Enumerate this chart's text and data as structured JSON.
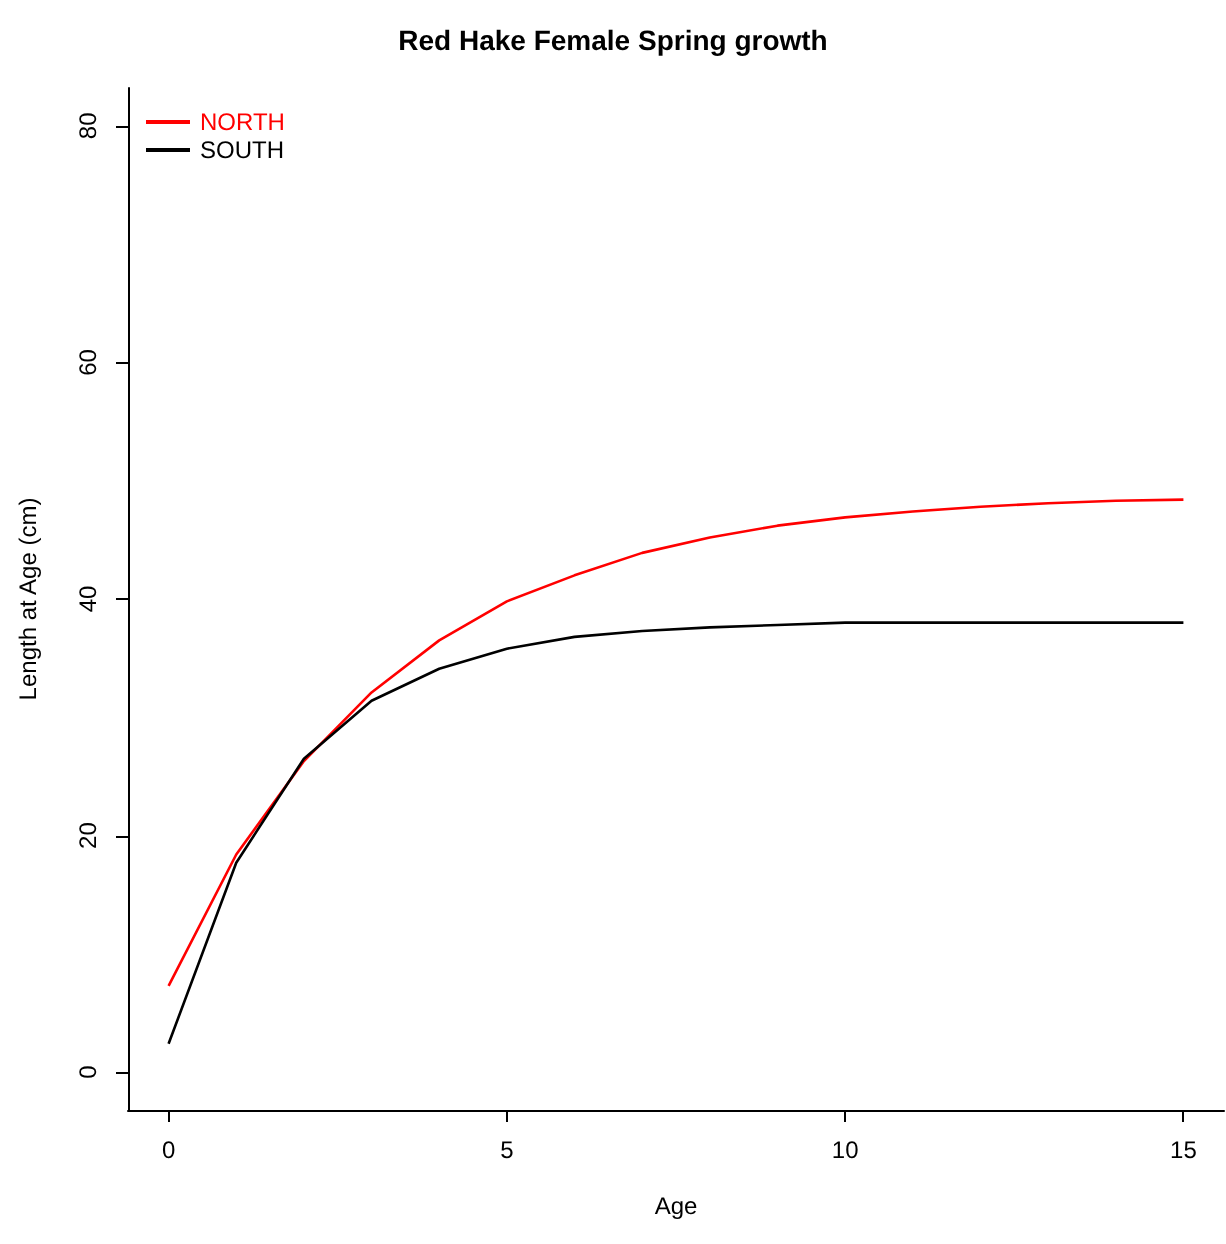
{
  "chart_data": {
    "type": "line",
    "title": "Red Hake Female Spring growth",
    "xlabel": "Age",
    "ylabel": "Length at Age (cm)",
    "x": [
      0,
      1,
      2,
      3,
      4,
      5,
      6,
      7,
      8,
      9,
      10,
      11,
      12,
      13,
      14,
      15
    ],
    "series": [
      {
        "name": "NORTH",
        "color": "#ff0000",
        "values": [
          7.3,
          18.4,
          26.3,
          32.1,
          36.5,
          39.8,
          42.0,
          43.9,
          45.2,
          46.2,
          46.9,
          47.4,
          47.8,
          48.1,
          48.3,
          48.4
        ]
      },
      {
        "name": "SOUTH",
        "color": "#000000",
        "values": [
          2.4,
          17.7,
          26.5,
          31.4,
          34.1,
          35.8,
          36.8,
          37.3,
          37.6,
          37.8,
          38.0,
          38.0,
          38.0,
          38.0,
          38.0,
          38.0
        ]
      }
    ],
    "xlim": [
      -0.6,
      15.6
    ],
    "xticks": [
      0,
      5,
      10,
      15
    ],
    "ylim": [
      -3.2,
      83.2
    ],
    "yticks": [
      0,
      20,
      40,
      60,
      80
    ],
    "legend": "top left",
    "marker": "none",
    "line_style": "solid"
  }
}
